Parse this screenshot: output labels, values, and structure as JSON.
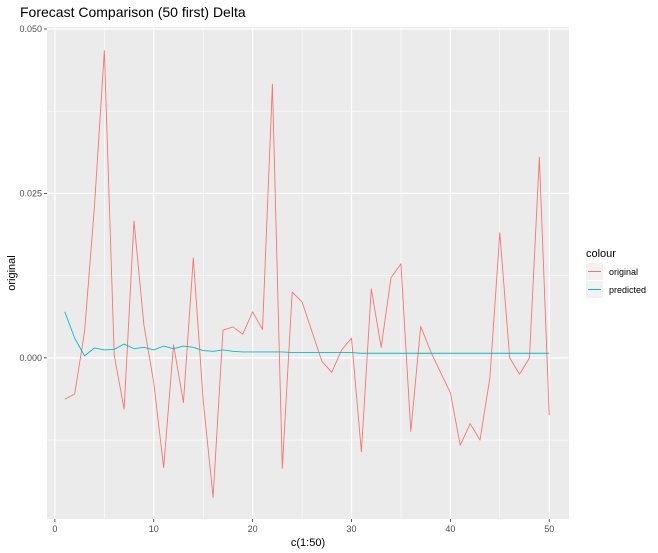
{
  "chart_data": {
    "type": "line",
    "title": "Forecast Comparison (50 first) Delta",
    "xlabel": "c(1:50)",
    "ylabel": "original",
    "xlim": [
      -0.8,
      52.0
    ],
    "ylim": [
      -0.0245,
      0.0503
    ],
    "x_ticks": [
      0,
      10,
      20,
      30,
      40,
      50
    ],
    "x_tick_labels": [
      "0",
      "10",
      "20",
      "30",
      "40",
      "50"
    ],
    "y_ticks": [
      0.0,
      0.025,
      0.05
    ],
    "y_tick_labels": [
      "0.000",
      "0.025",
      "0.050"
    ],
    "grid": true,
    "legend": {
      "title": "colour",
      "position": "right"
    },
    "x": [
      1,
      2,
      3,
      4,
      5,
      6,
      7,
      8,
      9,
      10,
      11,
      12,
      13,
      14,
      15,
      16,
      17,
      18,
      19,
      20,
      21,
      22,
      23,
      24,
      25,
      26,
      27,
      28,
      29,
      30,
      31,
      32,
      33,
      34,
      35,
      36,
      37,
      38,
      39,
      40,
      41,
      42,
      43,
      44,
      45,
      46,
      47,
      48,
      49,
      50
    ],
    "series": [
      {
        "name": "original",
        "color": "#F8766D",
        "values": [
          -0.0063,
          -0.0055,
          0.004,
          0.023,
          0.0467,
          0.0004,
          -0.0078,
          0.0208,
          0.005,
          -0.0038,
          -0.0167,
          0.002,
          -0.0068,
          0.0152,
          -0.0065,
          -0.0212,
          0.0042,
          0.0047,
          0.0036,
          0.007,
          0.0043,
          0.0416,
          -0.0168,
          0.01,
          0.0085,
          0.004,
          -0.0005,
          -0.0022,
          0.0012,
          0.003,
          -0.0143,
          0.0105,
          0.0016,
          0.0122,
          0.0143,
          -0.0112,
          0.0048,
          0.001,
          -0.0022,
          -0.0053,
          -0.0133,
          -0.01,
          -0.0125,
          -0.003,
          0.019,
          0.0,
          -0.0025,
          0.0,
          0.0305,
          -0.0087
        ]
      },
      {
        "name": "predicted",
        "color": "#00BFC4",
        "values": [
          0.007,
          0.003,
          0.0003,
          0.0015,
          0.0012,
          0.0013,
          0.0021,
          0.0014,
          0.0016,
          0.0012,
          0.0018,
          0.0014,
          0.0018,
          0.0016,
          0.0011,
          0.001,
          0.0012,
          0.001,
          0.0009,
          0.0009,
          0.0009,
          0.0009,
          0.0009,
          0.0008,
          0.0008,
          0.0008,
          0.0008,
          0.0008,
          0.0008,
          0.0008,
          0.0007,
          0.0007,
          0.0007,
          0.0007,
          0.0007,
          0.0007,
          0.0007,
          0.0007,
          0.0007,
          0.0007,
          0.0007,
          0.0007,
          0.0007,
          0.0007,
          0.0007,
          0.0007,
          0.0007,
          0.0007,
          0.0007,
          0.0007
        ]
      }
    ]
  }
}
